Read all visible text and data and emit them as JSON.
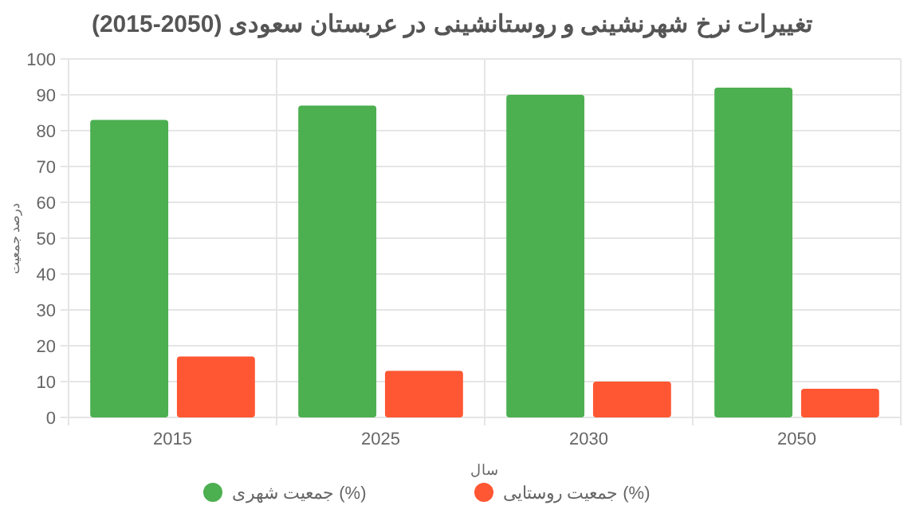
{
  "chart_data": {
    "type": "bar",
    "title": "تغییرات نرخ شهرنشینی و روستانشینی در عربستان سعودی (2050-2015)",
    "xlabel": "سال",
    "ylabel": "درصد جمعیت",
    "categories": [
      "2015",
      "2025",
      "2030",
      "2050"
    ],
    "series": [
      {
        "name": "جمعیت شهری (%)",
        "color": "#4caf50",
        "values": [
          83,
          87,
          90,
          92
        ]
      },
      {
        "name": "جمعیت روستایی (%)",
        "color": "#ff5733",
        "values": [
          17,
          13,
          10,
          8
        ]
      }
    ],
    "ylim": [
      0,
      100
    ],
    "yticks": [
      0,
      10,
      20,
      30,
      40,
      50,
      60,
      70,
      80,
      90,
      100
    ],
    "grid": true,
    "legend": "bottom"
  }
}
